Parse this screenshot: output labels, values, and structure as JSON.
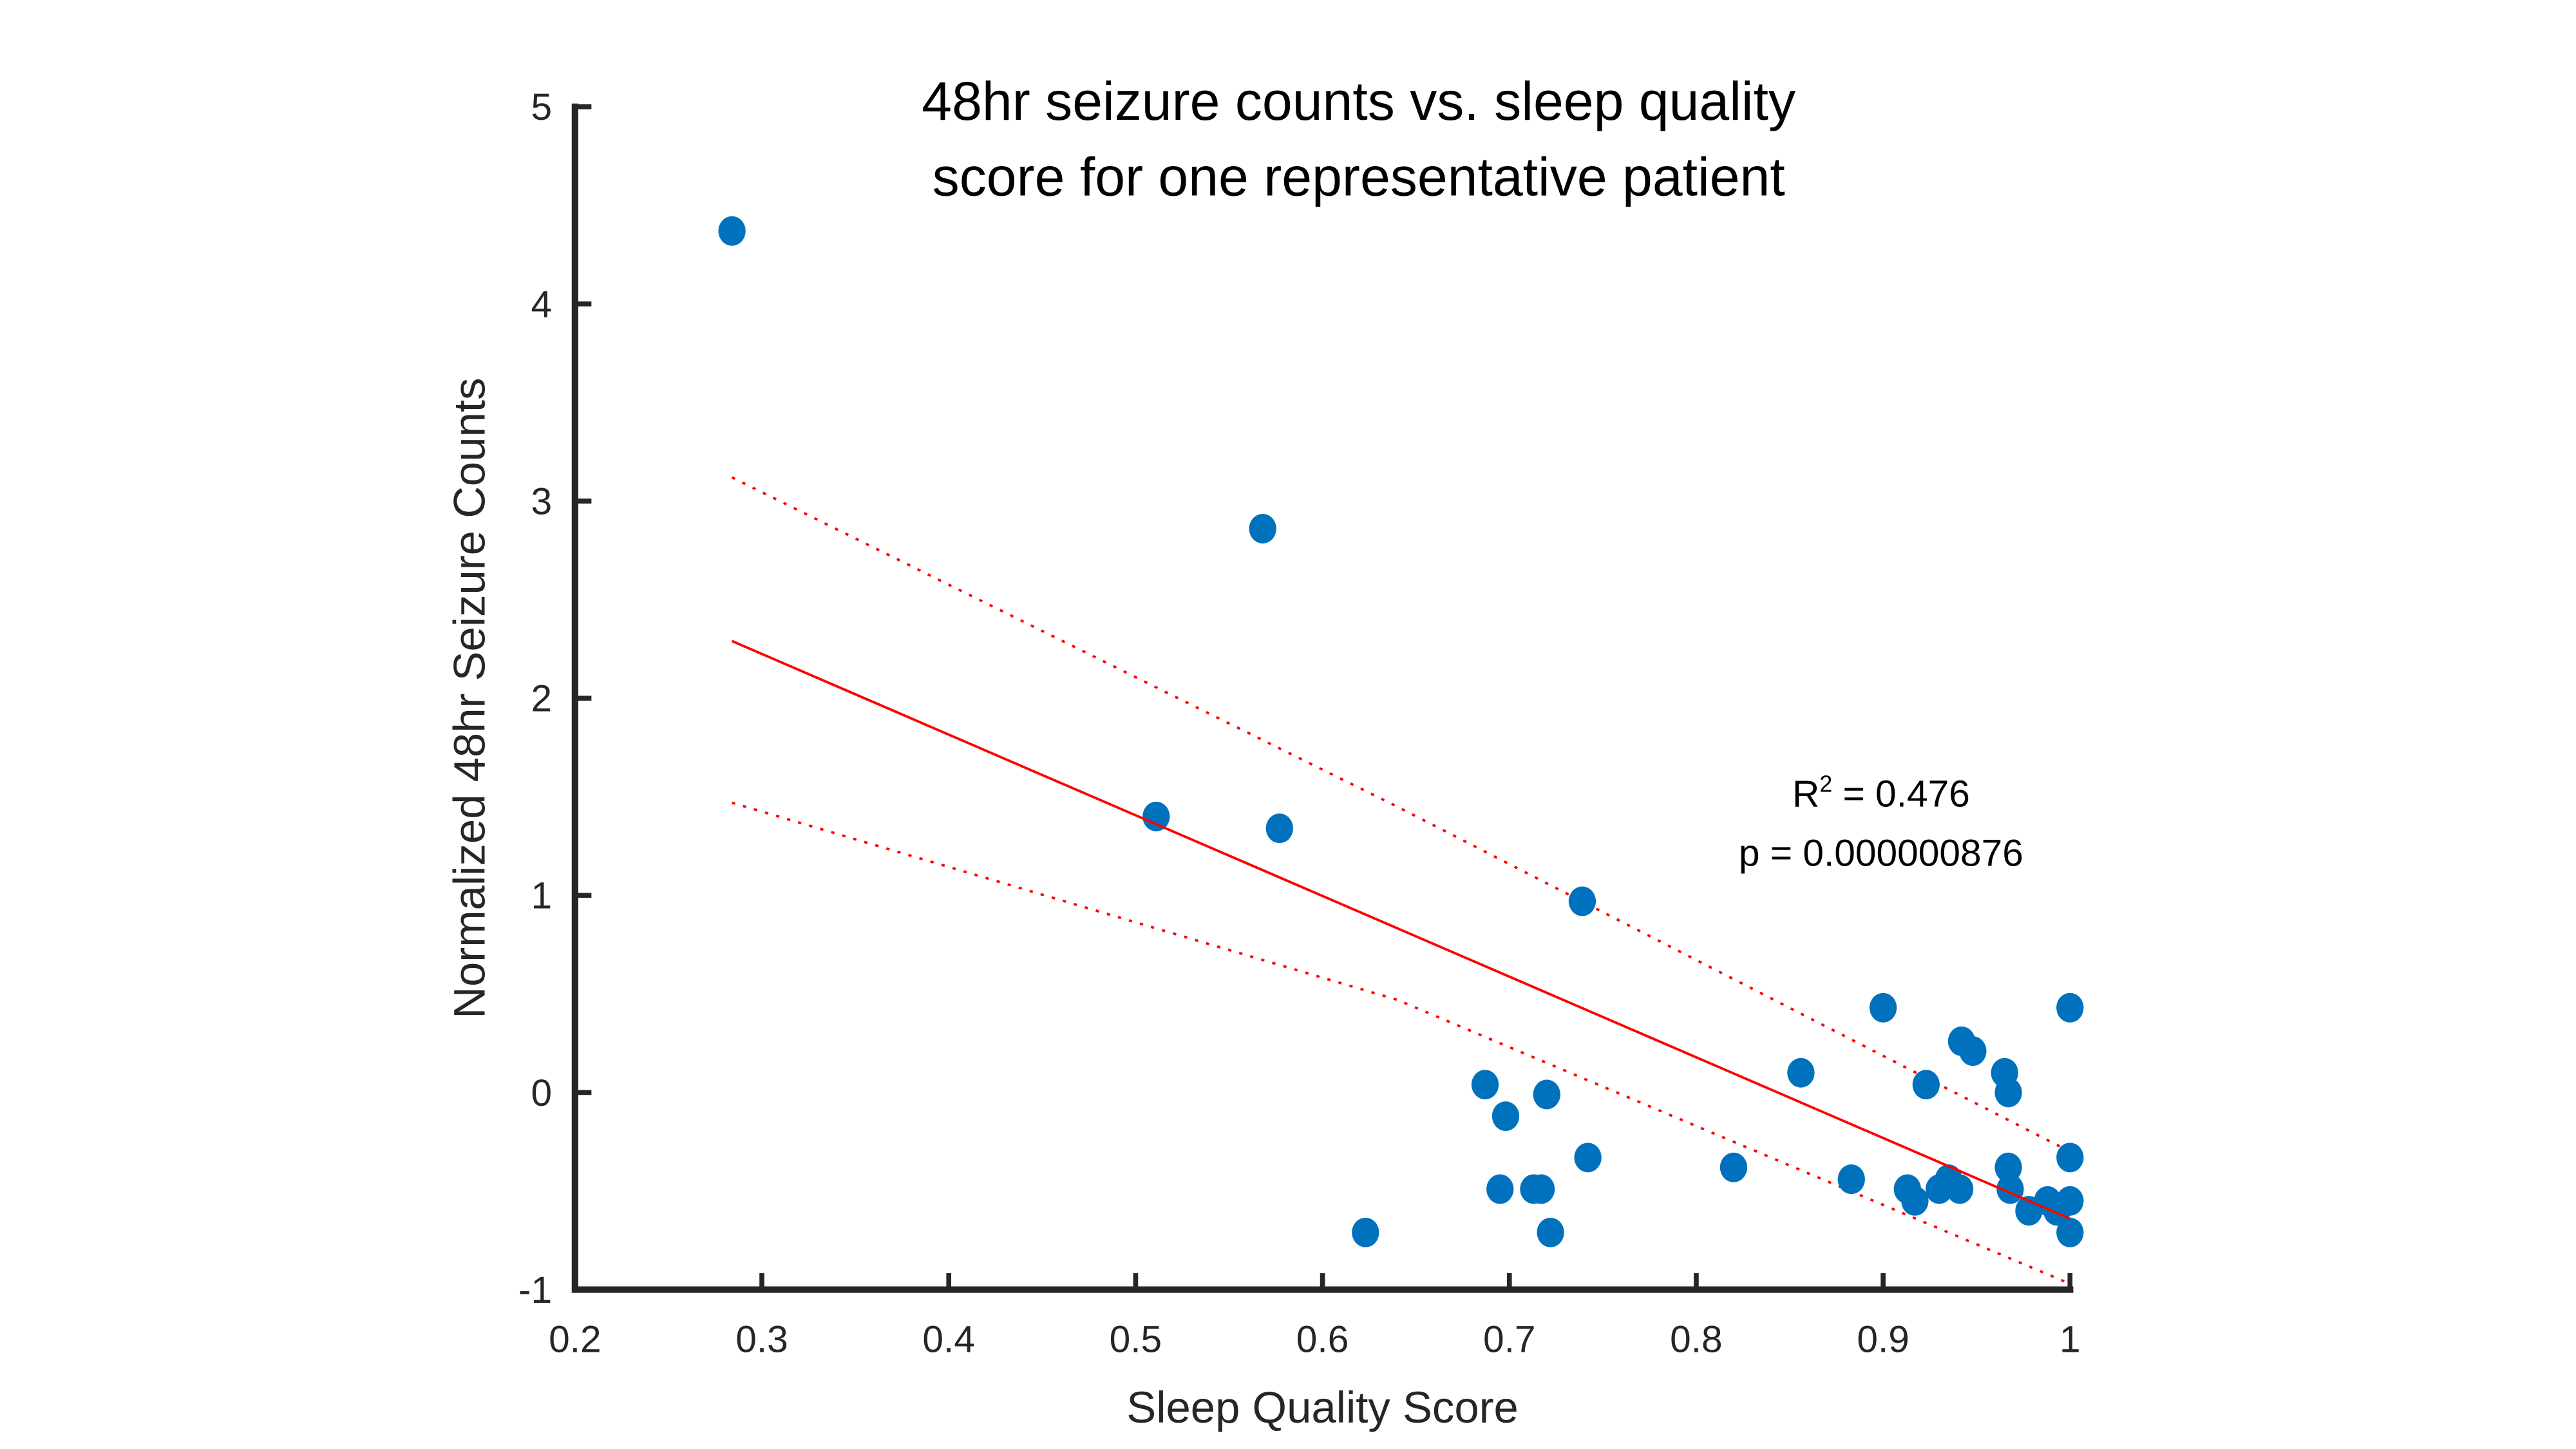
{
  "chart_data": {
    "type": "scatter",
    "title": [
      "48hr seizure counts vs. sleep quality",
      "score for one representative patient"
    ],
    "xlabel": "Sleep Quality Score",
    "ylabel": "Normalized 48hr Seizure Counts",
    "xlim": [
      0.2,
      1
    ],
    "ylim": [
      -1,
      5
    ],
    "xticks": [
      "0.2",
      "0.3",
      "0.4",
      "0.5",
      "0.6",
      "0.7",
      "0.8",
      "0.9",
      "1"
    ],
    "yticks": [
      "-1",
      "0",
      "1",
      "2",
      "3",
      "4",
      "5"
    ],
    "grid": false,
    "colors": {
      "points": "#0072BD",
      "fit": "#FF0000",
      "axis": "#262626"
    },
    "points": [
      [
        0.284,
        4.37
      ],
      [
        0.568,
        2.86
      ],
      [
        0.511,
        1.4
      ],
      [
        0.577,
        1.34
      ],
      [
        0.739,
        0.97
      ],
      [
        0.687,
        0.04
      ],
      [
        0.698,
        -0.12
      ],
      [
        0.72,
        -0.01
      ],
      [
        0.695,
        -0.49
      ],
      [
        0.713,
        -0.49
      ],
      [
        0.717,
        -0.49
      ],
      [
        0.722,
        -0.71
      ],
      [
        0.623,
        -0.71
      ],
      [
        0.742,
        -0.33
      ],
      [
        0.82,
        -0.38
      ],
      [
        0.856,
        0.1
      ],
      [
        0.9,
        0.43
      ],
      [
        0.923,
        0.04
      ],
      [
        0.883,
        -0.44
      ],
      [
        0.913,
        -0.49
      ],
      [
        0.917,
        -0.55
      ],
      [
        0.93,
        -0.49
      ],
      [
        0.935,
        -0.44
      ],
      [
        0.941,
        -0.49
      ],
      [
        0.942,
        0.26
      ],
      [
        0.948,
        0.21
      ],
      [
        0.965,
        0.1
      ],
      [
        0.967,
        0.0
      ],
      [
        0.967,
        -0.38
      ],
      [
        0.968,
        -0.49
      ],
      [
        0.978,
        -0.6
      ],
      [
        0.988,
        -0.55
      ],
      [
        0.993,
        -0.6
      ],
      [
        1.0,
        0.43
      ],
      [
        1.0,
        -0.33
      ],
      [
        1.0,
        -0.55
      ],
      [
        1.0,
        -0.71
      ]
    ],
    "fit_line": [
      [
        0.284,
        2.29
      ],
      [
        1.0,
        -0.64
      ]
    ],
    "ci_upper": [
      [
        0.284,
        3.12
      ],
      [
        0.64,
        1.45
      ],
      [
        1.0,
        -0.3
      ]
    ],
    "ci_lower": [
      [
        0.284,
        1.47
      ],
      [
        0.64,
        0.47
      ],
      [
        1.0,
        -0.97
      ]
    ],
    "annotation": {
      "r2_label": "R",
      "r2_sup": "2",
      "r2_value": " = 0.476",
      "p_text": "p = 0.000000876"
    }
  }
}
